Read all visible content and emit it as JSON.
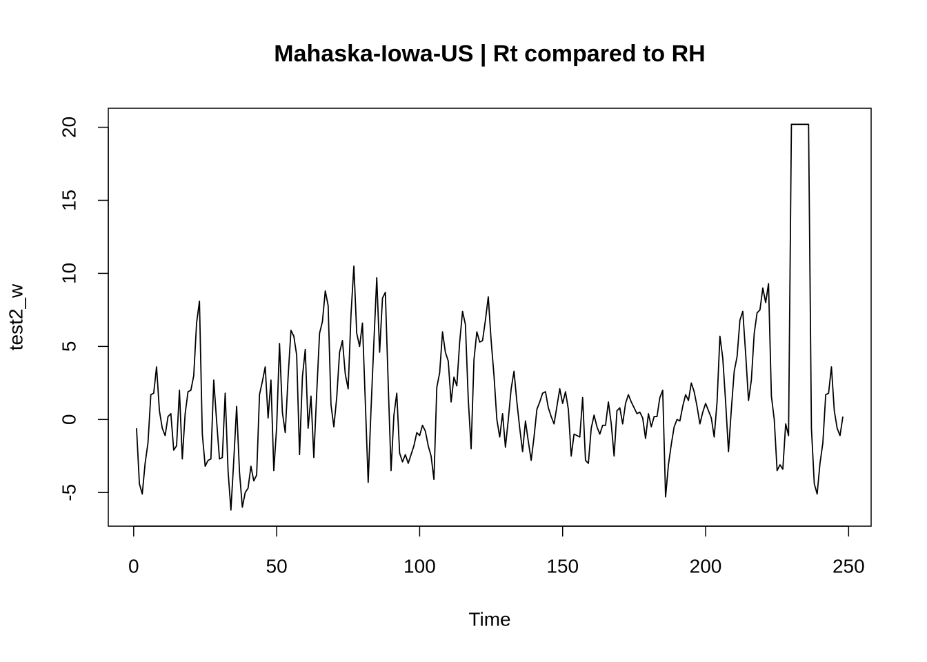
{
  "chart_data": {
    "type": "line",
    "title": "Mahaska-Iowa-US | Rt compared to RH",
    "x_label": "Time",
    "y_label": "test2_w",
    "x": [
      1,
      2,
      3,
      4,
      5,
      6,
      7,
      8,
      9,
      10,
      11,
      12,
      13,
      14,
      15,
      16,
      17,
      18,
      19,
      20,
      21,
      22,
      23,
      24,
      25,
      26,
      27,
      28,
      29,
      30,
      31,
      32,
      33,
      34,
      35,
      36,
      37,
      38,
      39,
      40,
      41,
      42,
      43,
      44,
      45,
      46,
      47,
      48,
      49,
      50,
      51,
      52,
      53,
      54,
      55,
      56,
      57,
      58,
      59,
      60,
      61,
      62,
      63,
      64,
      65,
      66,
      67,
      68,
      69,
      70,
      71,
      72,
      73,
      74,
      75,
      76,
      77,
      78,
      79,
      80,
      81,
      82,
      83,
      84,
      85,
      86,
      87,
      88,
      89,
      90,
      91,
      92,
      93,
      94,
      95,
      96,
      97,
      98,
      99,
      100,
      101,
      102,
      103,
      104,
      105,
      106,
      107,
      108,
      109,
      110,
      111,
      112,
      113,
      114,
      115,
      116,
      117,
      118,
      119,
      120,
      121,
      122,
      123,
      124,
      125,
      126,
      127,
      128,
      129,
      130,
      131,
      132,
      133,
      134,
      135,
      136,
      137,
      138,
      139,
      140,
      141,
      142,
      143,
      144,
      145,
      146,
      147,
      148,
      149,
      150,
      151,
      152,
      153,
      154,
      155,
      156,
      157,
      158,
      159,
      160,
      161,
      162,
      163,
      164,
      165,
      166,
      167,
      168,
      169,
      170,
      171,
      172,
      173,
      174,
      175,
      176,
      177,
      178,
      179,
      180,
      181,
      182,
      183,
      184,
      185,
      186,
      187,
      188,
      189,
      190,
      191,
      192,
      193,
      194,
      195,
      196,
      197,
      198,
      199,
      200,
      201,
      202,
      203,
      204,
      205,
      206,
      207,
      208,
      209,
      210,
      211,
      212,
      213,
      214,
      215,
      216,
      217,
      218,
      219,
      220,
      221,
      222,
      223,
      224,
      225,
      226,
      227,
      228,
      229,
      230,
      231,
      232,
      233,
      234,
      235,
      236,
      237,
      238,
      239,
      240,
      241,
      242,
      243,
      244,
      245,
      246,
      247,
      248
    ],
    "series": [
      {
        "name": "test2_w",
        "color": "#000000",
        "values": [
          -0.6,
          -4.4,
          -5.1,
          -3.0,
          -1.6,
          1.7,
          1.8,
          3.6,
          0.6,
          -0.6,
          -1.1,
          0.2,
          0.4,
          -2.1,
          -1.8,
          2.0,
          -2.7,
          0.4,
          1.9,
          2.0,
          3.0,
          6.6,
          8.1,
          -1.0,
          -3.2,
          -2.8,
          -2.7,
          2.7,
          -0.1,
          -2.7,
          -2.6,
          1.8,
          -3.5,
          -6.2,
          -2.8,
          0.9,
          -3.6,
          -6.0,
          -5.0,
          -4.7,
          -3.2,
          -4.2,
          -3.8,
          1.7,
          2.6,
          3.6,
          0.1,
          2.7,
          -3.5,
          -0.5,
          5.2,
          0.5,
          -0.9,
          2.9,
          6.1,
          5.7,
          4.4,
          -2.4,
          2.9,
          4.8,
          -0.6,
          1.6,
          -2.6,
          1.8,
          5.9,
          6.7,
          8.8,
          7.8,
          1.0,
          -0.5,
          1.5,
          4.6,
          5.4,
          3.1,
          2.1,
          7.2,
          10.5,
          5.9,
          5.0,
          6.6,
          1.2,
          -4.3,
          0.7,
          5.3,
          9.7,
          4.6,
          8.3,
          8.7,
          2.5,
          -3.5,
          0.3,
          1.8,
          -2.3,
          -2.9,
          -2.4,
          -3.0,
          -2.4,
          -1.8,
          -0.9,
          -1.1,
          -0.4,
          -0.8,
          -1.8,
          -2.5,
          -4.1,
          2.2,
          3.2,
          6.0,
          4.6,
          4.0,
          1.2,
          2.9,
          2.3,
          5.3,
          7.4,
          6.5,
          1.4,
          -2.0,
          4.1,
          6.0,
          5.3,
          5.4,
          6.8,
          8.4,
          5.4,
          3.0,
          0.0,
          -1.2,
          0.4,
          -1.9,
          0.0,
          2.1,
          3.3,
          1.2,
          -0.6,
          -2.2,
          -0.1,
          -1.5,
          -2.8,
          -1.2,
          0.7,
          1.2,
          1.8,
          1.9,
          0.8,
          0.2,
          -0.3,
          0.9,
          2.1,
          1.1,
          1.9,
          0.7,
          -2.5,
          -1.0,
          -1.1,
          -1.2,
          1.5,
          -2.8,
          -3.0,
          -0.6,
          0.3,
          -0.5,
          -1.0,
          -0.4,
          -0.4,
          1.2,
          -0.3,
          -2.5,
          0.6,
          0.8,
          -0.3,
          1.1,
          1.7,
          1.2,
          0.8,
          0.4,
          0.5,
          0.1,
          -1.3,
          0.4,
          -0.5,
          0.2,
          0.2,
          1.5,
          2.0,
          -5.3,
          -3.1,
          -1.7,
          -0.5,
          0.0,
          -0.1,
          0.9,
          1.7,
          1.3,
          2.5,
          1.9,
          0.9,
          -0.3,
          0.5,
          1.1,
          0.6,
          0.1,
          -1.2,
          1.2,
          5.7,
          4.2,
          1.2,
          -2.2,
          0.7,
          3.3,
          4.3,
          6.8,
          7.4,
          4.5,
          1.3,
          2.7,
          5.9,
          7.3,
          7.5,
          9.0,
          8.0,
          9.3,
          1.6,
          0.0,
          -3.5,
          -3.1,
          -3.4,
          -0.3,
          -1.1,
          20.2,
          20.2,
          20.2,
          20.2,
          20.2,
          20.2,
          20.2,
          -0.6,
          -4.4,
          -5.1,
          -3.0,
          -1.6,
          1.7,
          1.8,
          3.6,
          0.6,
          -0.6,
          -1.1,
          0.2
        ]
      }
    ],
    "xlim": [
      -8.88,
      257.88
    ],
    "xticks": [
      0,
      50,
      100,
      150,
      200,
      250
    ],
    "ylim": [
      -7.3,
      21.3
    ],
    "yticks": [
      -5,
      0,
      5,
      10,
      15,
      20
    ]
  }
}
